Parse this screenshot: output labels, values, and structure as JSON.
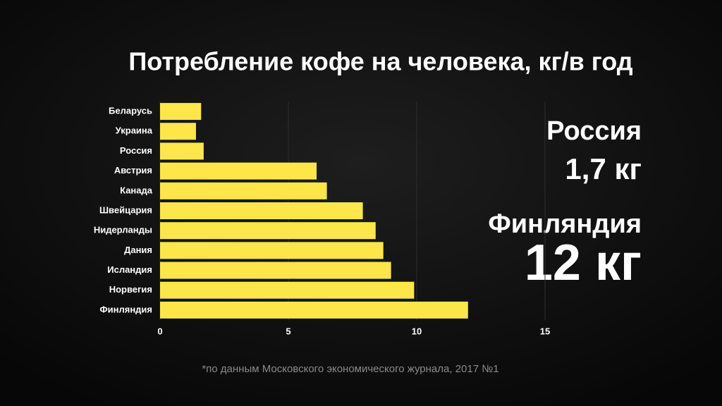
{
  "chart_data": {
    "type": "bar",
    "orientation": "horizontal",
    "title": "Потребление кофе на человека, кг/в год",
    "categories": [
      "Беларусь",
      "Украина",
      "Россия",
      "Австрия",
      "Канада",
      "Швейцария",
      "Нидерланды",
      "Дания",
      "Исландия",
      "Норвегия",
      "Финляндия"
    ],
    "values": [
      1.6,
      1.4,
      1.7,
      6.1,
      6.5,
      7.9,
      8.4,
      8.7,
      9.0,
      9.9,
      12.0
    ],
    "color": "#fce64a",
    "xlim": [
      0,
      15
    ],
    "xticks": [
      0,
      5,
      10,
      15
    ],
    "grid": true,
    "annotations": [
      "Россия",
      "1,7 кг",
      "Финляндия",
      "12 кг"
    ],
    "footnote": "*по данным Московского экономического журнала, 2017 №1"
  }
}
